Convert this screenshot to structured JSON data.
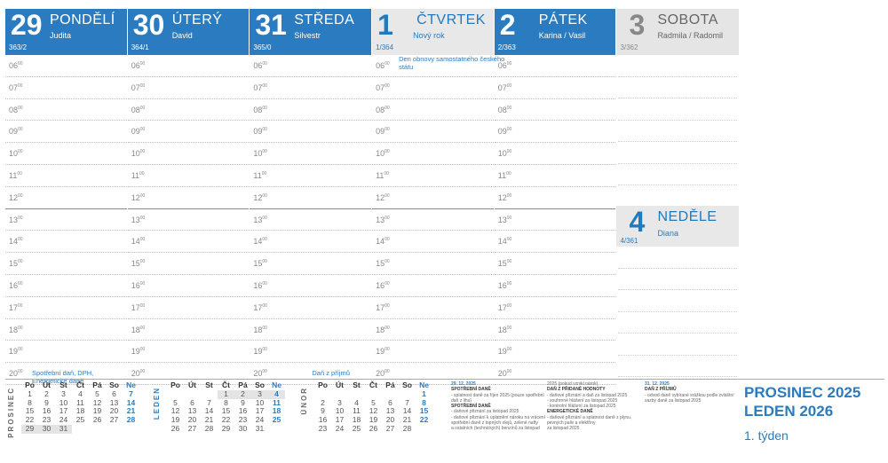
{
  "days": [
    {
      "num": "29",
      "name": "PONDĚLÍ",
      "nameday": "Judita",
      "code": "363/2",
      "style": "blue",
      "notes": [
        {
          "row": 14,
          "text": "Spotřební daň, DPH, Energetické daně"
        }
      ]
    },
    {
      "num": "30",
      "name": "ÚTERÝ",
      "nameday": "David",
      "code": "364/1",
      "style": "blue",
      "notes": []
    },
    {
      "num": "31",
      "name": "STŘEDA",
      "nameday": "Silvestr",
      "code": "365/0",
      "style": "blue",
      "notes": [
        {
          "row": 14,
          "text": "Daň z příjmů"
        }
      ]
    },
    {
      "num": "1",
      "name": "ČTVRTEK",
      "nameday": "Nový rok",
      "code": "1/364",
      "style": "light",
      "notes": [
        {
          "row": 0,
          "text": "Den obnovy samostatného českého státu"
        }
      ]
    },
    {
      "num": "2",
      "name": "PÁTEK",
      "nameday": "Karina / Vasil",
      "code": "2/363",
      "style": "blue",
      "notes": []
    }
  ],
  "hours": [
    "06",
    "07",
    "08",
    "09",
    "10",
    "11",
    "12",
    "13",
    "14",
    "15",
    "16",
    "17",
    "18",
    "19",
    "20"
  ],
  "minutes": "00",
  "saturday": {
    "num": "3",
    "name": "SOBOTA",
    "nameday": "Radmila / Radomil",
    "code": "3/362"
  },
  "sunday": {
    "num": "4",
    "name": "NEDĚLE",
    "nameday": "Diana",
    "code": "4/361"
  },
  "mini_calendars": [
    {
      "label": "PROSINEC",
      "headers": [
        "Po",
        "Út",
        "St",
        "Čt",
        "Pá",
        "So",
        "Ne"
      ],
      "rows": [
        [
          "1",
          "2",
          "3",
          "4",
          "5",
          "6",
          "7"
        ],
        [
          "8",
          "9",
          "10",
          "11",
          "12",
          "13",
          "14"
        ],
        [
          "15",
          "16",
          "17",
          "18",
          "19",
          "20",
          "21"
        ],
        [
          "22",
          "23",
          "24",
          "25",
          "26",
          "27",
          "28"
        ],
        [
          "29",
          "30",
          "31",
          "",
          "",
          "",
          ""
        ]
      ],
      "shaded": [
        [
          4,
          0
        ],
        [
          4,
          1
        ],
        [
          4,
          2
        ]
      ]
    },
    {
      "label": "LEDEN",
      "headers": [
        "Po",
        "Út",
        "St",
        "Čt",
        "Pá",
        "So",
        "Ne"
      ],
      "rows": [
        [
          "",
          "",
          "",
          "1",
          "2",
          "3",
          "4"
        ],
        [
          "5",
          "6",
          "7",
          "8",
          "9",
          "10",
          "11"
        ],
        [
          "12",
          "13",
          "14",
          "15",
          "16",
          "17",
          "18"
        ],
        [
          "19",
          "20",
          "21",
          "22",
          "23",
          "24",
          "25"
        ],
        [
          "26",
          "27",
          "28",
          "29",
          "30",
          "31",
          ""
        ]
      ],
      "shaded": [
        [
          0,
          3
        ],
        [
          0,
          4
        ],
        [
          0,
          5
        ],
        [
          0,
          6
        ]
      ]
    },
    {
      "label": "ÚNOR",
      "headers": [
        "Po",
        "Út",
        "St",
        "Čt",
        "Pá",
        "So",
        "Ne"
      ],
      "rows": [
        [
          "",
          "",
          "",
          "",
          "",
          "",
          "1"
        ],
        [
          "2",
          "3",
          "4",
          "5",
          "6",
          "7",
          "8"
        ],
        [
          "9",
          "10",
          "11",
          "12",
          "13",
          "14",
          "15"
        ],
        [
          "16",
          "17",
          "18",
          "19",
          "20",
          "21",
          "22"
        ],
        [
          "23",
          "24",
          "25",
          "26",
          "27",
          "28",
          ""
        ]
      ],
      "shaded": []
    }
  ],
  "tax_col1": [
    {
      "t": "d",
      "s": "29. 12. 2025"
    },
    {
      "t": "h",
      "s": "SPOTŘEBNÍ DANĚ"
    },
    {
      "t": "n",
      "s": "- splatnost daně za říjen 2025 (pouze spotřební"
    },
    {
      "t": "n",
      "s": "  daň z lihu)"
    },
    {
      "t": "h",
      "s": "SPOTŘEBNÍ DANĚ"
    },
    {
      "t": "n",
      "s": "- daňové přiznání za listopad 2025"
    },
    {
      "t": "n",
      "s": "- daňové přiznání k uplatnění nároku na vrácení"
    },
    {
      "t": "n",
      "s": "  spotřební daně z topných olejů, zelené nafty"
    },
    {
      "t": "n",
      "s": "  a ostatních (technických) benzínů za listopad"
    }
  ],
  "tax_col2": [
    {
      "t": "n",
      "s": "2025 (pokud vznikl nárok)"
    },
    {
      "t": "h",
      "s": "DAŇ Z PŘIDANÉ HODNOTY"
    },
    {
      "t": "n",
      "s": "- daňové přiznání a daň za listopad 2025"
    },
    {
      "t": "n",
      "s": "- souhrnné hlášení za listopad 2025"
    },
    {
      "t": "n",
      "s": "- kontrolní hlášení za listopad 2025"
    },
    {
      "t": "h",
      "s": "ENERGETICKÉ DANĚ"
    },
    {
      "t": "n",
      "s": "- daňové přiznání a splatnost daně z plynu,"
    },
    {
      "t": "n",
      "s": "  pevných paliv a elektřiny"
    },
    {
      "t": "n",
      "s": "  za listopad 2025"
    }
  ],
  "tax_col3": [
    {
      "t": "d",
      "s": "31. 12. 2025"
    },
    {
      "t": "h",
      "s": "DAŇ Z PŘÍJMŮ"
    },
    {
      "t": "n",
      "s": "- odvod daně vybírané srážkou podle zvláštní"
    },
    {
      "t": "n",
      "s": "  sazby daně za listopad 2025"
    }
  ],
  "month_title_1": "PROSINEC 2025",
  "month_title_2": "LEDEN 2026",
  "week_label": "1. týden"
}
